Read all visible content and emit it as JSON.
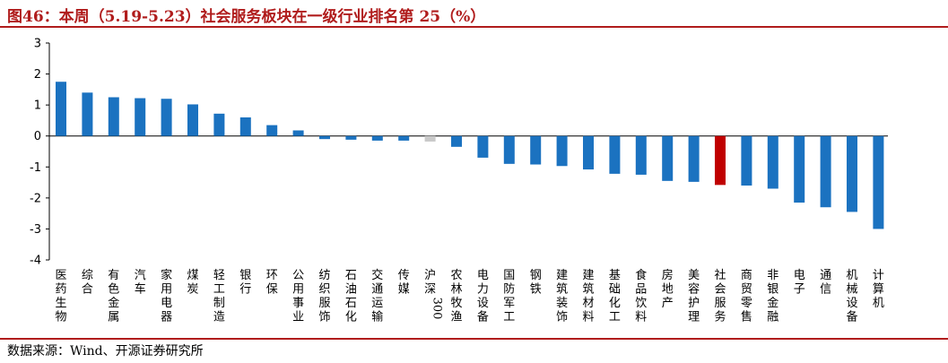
{
  "header": {
    "title": "图46：本周（5.19-5.23）社会服务板块在一级行业排名第 25（%）"
  },
  "footer": {
    "source": "数据来源：Wind、开源证券研究所"
  },
  "colors": {
    "bar": "#1b72c0",
    "highlight": "#c00000",
    "benchmark": "#c9c9c9",
    "rule": "#b01c1c"
  },
  "chart_data": {
    "type": "bar",
    "title": "本周（5.19-5.23）社会服务板块在一级行业排名第 25（%）",
    "xlabel": "",
    "ylabel": "",
    "ylim": [
      -4,
      3
    ],
    "yticks": [
      3,
      2,
      1,
      0,
      -1,
      -2,
      -3,
      -4
    ],
    "grid": false,
    "legend": "none",
    "highlight_category": "社会服务",
    "benchmark_category": "沪深300",
    "categories": [
      "医药生物",
      "综合",
      "有色金属",
      "汽车",
      "家用电器",
      "煤炭",
      "轻工制造",
      "银行",
      "环保",
      "公用事业",
      "纺织服饰",
      "石油石化",
      "交通运输",
      "传媒",
      "沪深300",
      "农林牧渔",
      "电力设备",
      "国防军工",
      "钢铁",
      "建筑装饰",
      "建筑材料",
      "基础化工",
      "食品饮料",
      "房地产",
      "美容护理",
      "社会服务",
      "商贸零售",
      "非银金融",
      "电子",
      "通信",
      "机械设备",
      "计算机"
    ],
    "values": [
      1.75,
      1.4,
      1.25,
      1.22,
      1.2,
      1.02,
      0.72,
      0.6,
      0.35,
      0.18,
      -0.1,
      -0.12,
      -0.15,
      -0.15,
      -0.18,
      -0.35,
      -0.7,
      -0.9,
      -0.92,
      -0.97,
      -1.08,
      -1.22,
      -1.25,
      -1.45,
      -1.48,
      -1.58,
      -1.6,
      -1.7,
      -2.15,
      -2.3,
      -2.45,
      -3.0
    ]
  }
}
